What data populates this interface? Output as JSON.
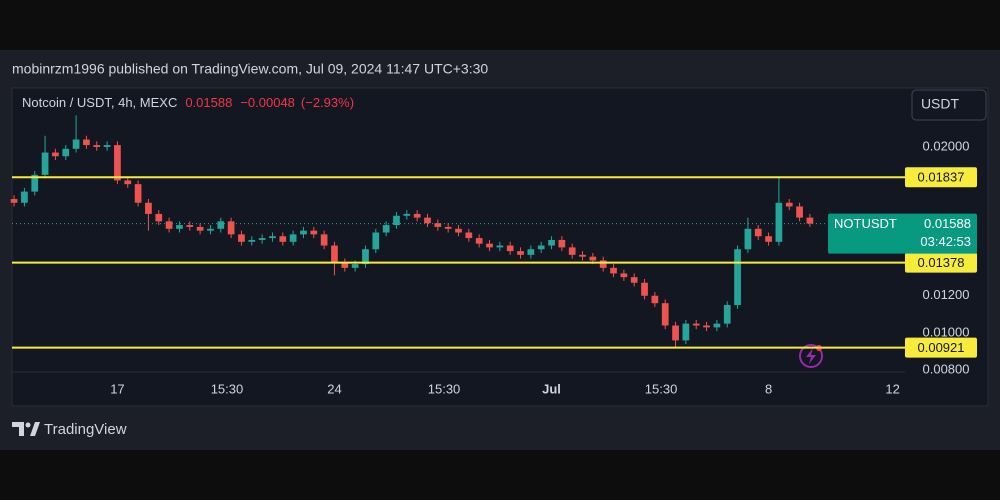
{
  "attribution": "mobinrzm1996 published on TradingView.com, Jul 09, 2024 11:47 UTC+3:30",
  "brand": "TradingView",
  "currency_button": "USDT",
  "chart_data": {
    "type": "candlestick",
    "title": "Notcoin / USDT, 4h, MEXC",
    "last_price": 0.01588,
    "change": {
      "value": -0.00048,
      "label": "−0.00048"
    },
    "change_pct": {
      "value": -2.93,
      "label": "(−2.93%)"
    },
    "symbol": "NOTUSDT",
    "countdown": "03:42:53",
    "up_color": "#26a69a",
    "down_color": "#ef5350",
    "line_color": "#f7ec3c",
    "grid": false,
    "xlim": [
      -0.2,
      86.2
    ],
    "ylim": [
      0.0079,
      0.02317
    ],
    "xticks": [
      {
        "value": 10,
        "label": "17"
      },
      {
        "value": 20.6,
        "label": "15:30"
      },
      {
        "value": 31,
        "label": "24"
      },
      {
        "value": 41.6,
        "label": "15:30"
      },
      {
        "value": 52,
        "label": "Jul"
      },
      {
        "value": 62.6,
        "label": "15:30"
      },
      {
        "value": 73,
        "label": "8"
      },
      {
        "value": 85,
        "label": "12"
      }
    ],
    "yticks": [
      {
        "value": 0.02,
        "label": "0.02000"
      },
      {
        "value": 0.012,
        "label": "0.01200"
      },
      {
        "value": 0.01,
        "label": "0.01000"
      },
      {
        "value": 0.008,
        "label": "0.00800"
      }
    ],
    "price_lines": [
      0.01837,
      0.01378,
      0.00921
    ],
    "open": [
      0.0172,
      0.017,
      0.0176,
      0.0185,
      0.0197,
      0.0195,
      0.0199,
      0.0204,
      0.0201,
      0.02,
      0.0201,
      0.0182,
      0.018,
      0.017,
      0.0164,
      0.016,
      0.0156,
      0.0158,
      0.0157,
      0.0155,
      0.0156,
      0.016,
      0.0153,
      0.0149,
      0.015,
      0.0151,
      0.0152,
      0.0149,
      0.0153,
      0.0155,
      0.0153,
      0.0147,
      0.0138,
      0.0135,
      0.0137,
      0.0145,
      0.0154,
      0.0158,
      0.0163,
      0.0164,
      0.0162,
      0.0159,
      0.0157,
      0.0156,
      0.0154,
      0.0151,
      0.0148,
      0.0146,
      0.0147,
      0.0144,
      0.0142,
      0.0145,
      0.0147,
      0.015,
      0.0146,
      0.0142,
      0.0141,
      0.0139,
      0.0135,
      0.0132,
      0.013,
      0.0127,
      0.012,
      0.0116,
      0.0104,
      0.0096,
      0.0105,
      0.0104,
      0.0103,
      0.0105,
      0.0115,
      0.0145,
      0.0156,
      0.0152,
      0.0149,
      0.017,
      0.0168,
      0.0162
    ],
    "high": [
      0.0174,
      0.0178,
      0.0187,
      0.0206,
      0.0199,
      0.0201,
      0.0217,
      0.0206,
      0.0203,
      0.0203,
      0.0203,
      0.0184,
      0.0182,
      0.0172,
      0.0166,
      0.0162,
      0.016,
      0.016,
      0.0159,
      0.0158,
      0.0162,
      0.0162,
      0.0155,
      0.0152,
      0.0153,
      0.0154,
      0.0154,
      0.0155,
      0.0157,
      0.0157,
      0.0155,
      0.0149,
      0.014,
      0.0139,
      0.0147,
      0.0156,
      0.016,
      0.0165,
      0.0166,
      0.0166,
      0.0164,
      0.0161,
      0.0159,
      0.0158,
      0.0156,
      0.0153,
      0.015,
      0.0149,
      0.0149,
      0.0146,
      0.0147,
      0.0149,
      0.0152,
      0.0152,
      0.0148,
      0.0144,
      0.0143,
      0.0141,
      0.0137,
      0.0134,
      0.0132,
      0.0129,
      0.0122,
      0.0118,
      0.0106,
      0.0107,
      0.0107,
      0.0106,
      0.0107,
      0.0117,
      0.0147,
      0.0162,
      0.0158,
      0.0154,
      0.01835,
      0.0172,
      0.017,
      0.0164
    ],
    "low": [
      0.0168,
      0.0168,
      0.0174,
      0.0183,
      0.0193,
      0.0193,
      0.0197,
      0.0199,
      0.0198,
      0.0198,
      0.018,
      0.0178,
      0.0168,
      0.0155,
      0.0158,
      0.0154,
      0.0154,
      0.0155,
      0.0153,
      0.0153,
      0.0154,
      0.0151,
      0.0147,
      0.0147,
      0.0148,
      0.0149,
      0.0147,
      0.0147,
      0.0151,
      0.0151,
      0.0145,
      0.0131,
      0.0133,
      0.0133,
      0.0135,
      0.0143,
      0.0152,
      0.0156,
      0.0161,
      0.016,
      0.0157,
      0.0155,
      0.0154,
      0.0152,
      0.0149,
      0.0146,
      0.0144,
      0.0144,
      0.0142,
      0.014,
      0.014,
      0.0143,
      0.0145,
      0.0144,
      0.014,
      0.0139,
      0.0137,
      0.0133,
      0.013,
      0.0128,
      0.0125,
      0.0118,
      0.0114,
      0.0102,
      0.0092,
      0.0094,
      0.0102,
      0.0101,
      0.0101,
      0.0103,
      0.0113,
      0.0143,
      0.015,
      0.0147,
      0.0147,
      0.0166,
      0.016,
      0.0157
    ],
    "close": [
      0.017,
      0.0176,
      0.0185,
      0.0197,
      0.0195,
      0.0199,
      0.0204,
      0.0201,
      0.02,
      0.0201,
      0.0182,
      0.018,
      0.017,
      0.0164,
      0.016,
      0.0156,
      0.0158,
      0.0157,
      0.0155,
      0.0156,
      0.016,
      0.0153,
      0.0149,
      0.015,
      0.0151,
      0.0152,
      0.0149,
      0.0153,
      0.0155,
      0.0153,
      0.0147,
      0.0138,
      0.0135,
      0.0137,
      0.0145,
      0.0154,
      0.0158,
      0.0163,
      0.0164,
      0.0162,
      0.0159,
      0.0157,
      0.0156,
      0.0154,
      0.0151,
      0.0148,
      0.0146,
      0.0147,
      0.0144,
      0.0142,
      0.0145,
      0.0147,
      0.015,
      0.0146,
      0.0142,
      0.0141,
      0.0139,
      0.0135,
      0.0132,
      0.013,
      0.0127,
      0.012,
      0.0116,
      0.0104,
      0.0096,
      0.0105,
      0.0104,
      0.0103,
      0.0105,
      0.0115,
      0.0145,
      0.0156,
      0.0152,
      0.0149,
      0.017,
      0.0168,
      0.0162,
      0.01588
    ]
  }
}
